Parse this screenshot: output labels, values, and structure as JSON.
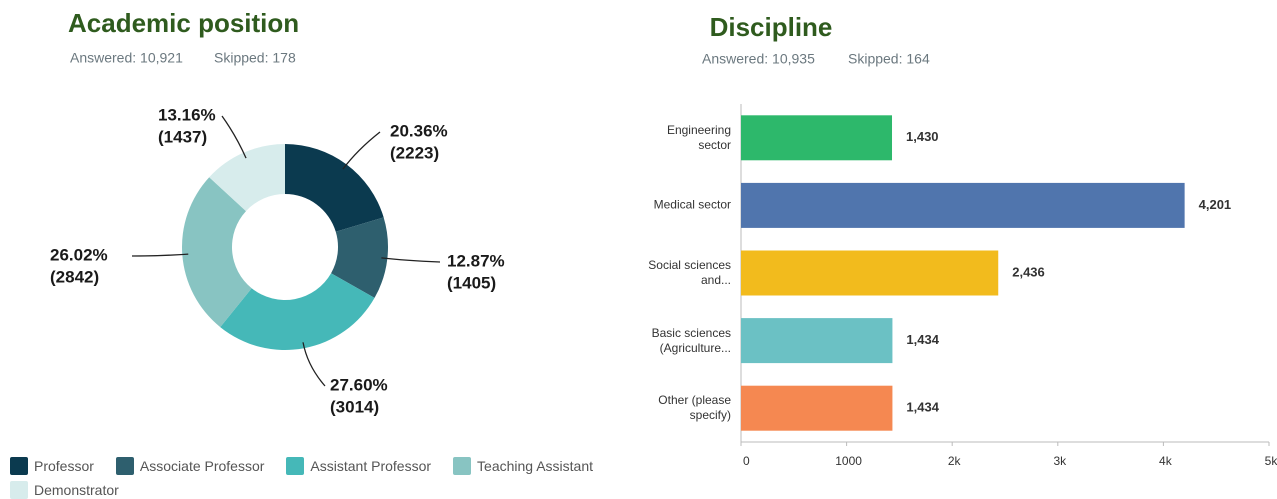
{
  "chart_data": [
    {
      "type": "donut",
      "title": "Academic position",
      "answered": "Answered: 10,921",
      "skipped": "Skipped: 178",
      "categories": [
        "Professor",
        "Associate Professor",
        "Assistant Professor",
        "Teaching Assistant",
        "Demonstrator"
      ],
      "values": [
        20.36,
        12.87,
        27.6,
        26.02,
        13.16
      ],
      "value_labels": [
        "20.36%",
        "12.87%",
        "27.60%",
        "26.02%",
        "13.16%"
      ],
      "counts": [
        2223,
        1405,
        3014,
        2842,
        1437
      ],
      "count_labels": [
        "(2223)",
        "(1405)",
        "(3014)",
        "(2842)",
        "(1437)"
      ],
      "colors": [
        "#0b3a4f",
        "#2e5f6e",
        "#45b8b8",
        "#88c4c2",
        "#d7ecec"
      ],
      "legend": "bottom"
    },
    {
      "type": "hbar",
      "title": "Discipline",
      "answered": "Answered: 10,935",
      "skipped": "Skipped: 164",
      "categories": [
        "Engineering sector",
        "Medical sector",
        "Social sciences and...",
        "Basic sciences (Agriculture...",
        "Other (please specify)"
      ],
      "values": [
        1430,
        4201,
        2436,
        1434,
        1434
      ],
      "value_labels": [
        "1,430",
        "4,201",
        "2,436",
        "1,434",
        "1,434"
      ],
      "colors": [
        "#2db86b",
        "#5075ad",
        "#f2bb1d",
        "#6bc1c4",
        "#f58851"
      ],
      "xlim": [
        0,
        5000
      ],
      "xticks": [
        0,
        1000,
        {
          "value": 2000,
          "label": "2k"
        },
        {
          "value": 3000,
          "label": "3k"
        },
        {
          "value": 4000,
          "label": "4k"
        },
        {
          "value": 5000,
          "label": "5k"
        }
      ]
    }
  ]
}
